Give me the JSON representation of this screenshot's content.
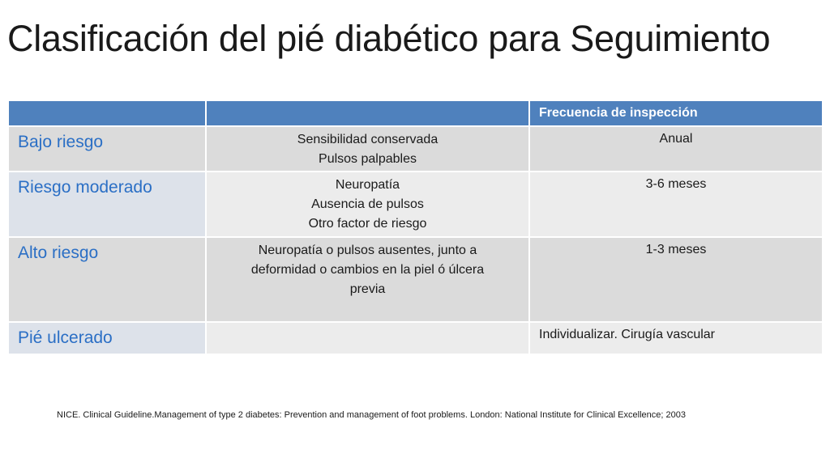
{
  "title": "Clasificación del pié diabético para Seguimiento",
  "table": {
    "headers": [
      "",
      "",
      "Frecuencia de inspección"
    ],
    "rows": [
      {
        "risk": "Bajo riesgo",
        "criteria": [
          "Sensibilidad conservada",
          "Pulsos palpables"
        ],
        "frequency": "Anual"
      },
      {
        "risk": "Riesgo moderado",
        "criteria": [
          "Neuropatía",
          "Ausencia de pulsos",
          "Otro factor de riesgo"
        ],
        "frequency": "3-6 meses"
      },
      {
        "risk": "Alto riesgo",
        "criteria": [
          "Neuropatía o pulsos ausentes, junto a",
          "deformidad o cambios en la piel ó úlcera",
          "previa"
        ],
        "frequency": "1-3 meses"
      },
      {
        "risk": "Pié ulcerado",
        "criteria": [],
        "frequency": "Individualizar. Cirugía vascular"
      }
    ]
  },
  "citation": "NICE. Clinical Guideline.Management of type 2 diabetes: Prevention and management of foot problems. London: National Institute for Clinical Excellence; 2003",
  "colors": {
    "header": "#4f81bd",
    "row_dark": "#dbdbdb",
    "row_light": "#ececec",
    "label_blue": "#2b6fc5"
  }
}
